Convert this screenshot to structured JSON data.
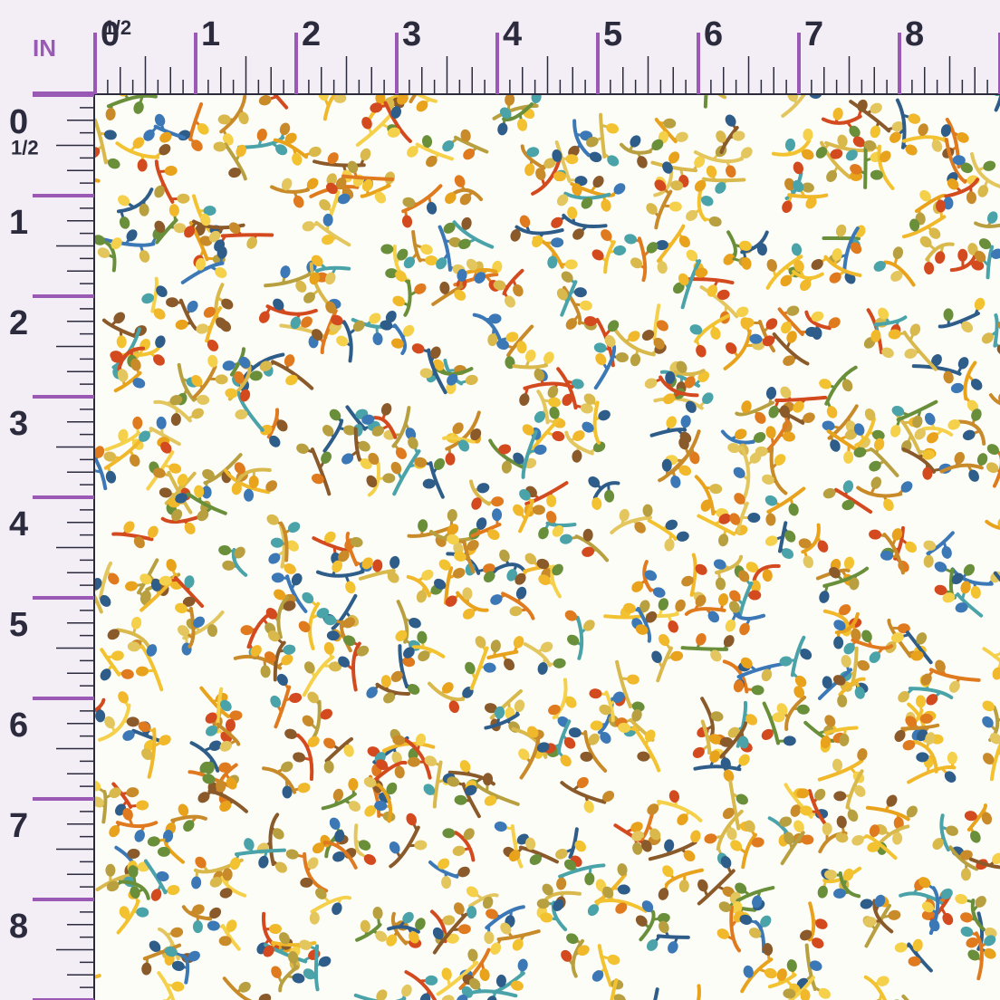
{
  "top_ruler": {
    "unit": "IN",
    "labels": [
      "0",
      "1/2",
      "1",
      "2",
      "3",
      "4",
      "5",
      "6",
      "7",
      "8"
    ]
  },
  "left_ruler": {
    "labels": [
      "0",
      "1/2",
      "1",
      "2",
      "3",
      "4",
      "5",
      "6",
      "7",
      "8"
    ]
  }
}
